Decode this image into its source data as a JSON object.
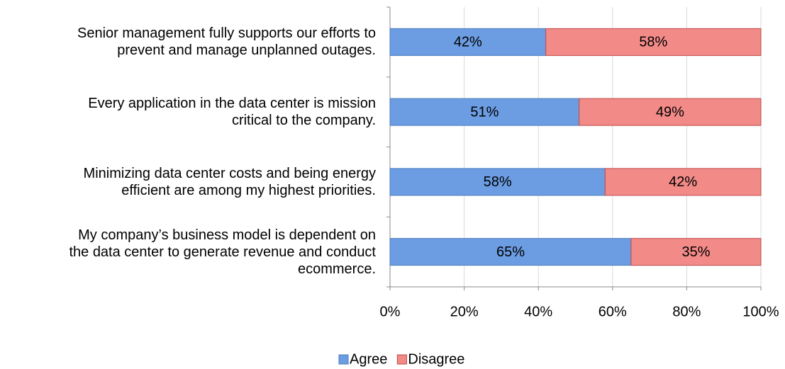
{
  "chart_data": {
    "type": "stacked_barh",
    "categories": [
      "Senior management fully supports our efforts to\nprevent and manage unplanned outages.",
      "Every application in the data center is mission\ncritical to the company.",
      "Minimizing data center costs and being energy\nefficient are among my highest priorities.",
      "My company’s business model is dependent on\nthe data center to generate revenue and conduct\necommerce."
    ],
    "series": [
      {
        "name": "Agree",
        "color": "#6c9ce2",
        "values": [
          42,
          51,
          58,
          65
        ],
        "value_labels": [
          "42%",
          "51%",
          "58%",
          "65%"
        ]
      },
      {
        "name": "Disagree",
        "color": "#f28a88",
        "values": [
          58,
          49,
          42,
          35
        ],
        "value_labels": [
          "58%",
          "49%",
          "42%",
          "35%"
        ]
      }
    ],
    "xlim": [
      0,
      100
    ],
    "xticks": [
      {
        "value": 0,
        "label": "0%"
      },
      {
        "value": 20,
        "label": "20%"
      },
      {
        "value": 40,
        "label": "40%"
      },
      {
        "value": 60,
        "label": "60%"
      },
      {
        "value": 80,
        "label": "80%"
      },
      {
        "value": 100,
        "label": "100%"
      }
    ],
    "grid": true,
    "legend": "bottom"
  }
}
